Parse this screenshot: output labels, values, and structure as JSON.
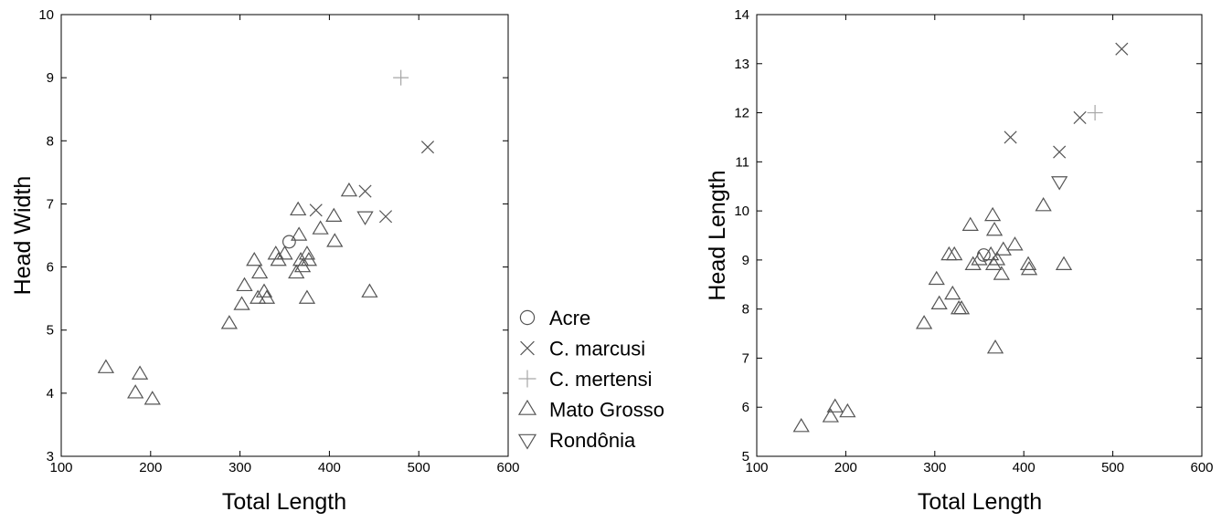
{
  "chart_data": [
    {
      "type": "scatter",
      "title": "",
      "xlabel": "Total Length",
      "ylabel": "Head Width",
      "xlim": [
        100,
        600
      ],
      "ylim": [
        3,
        10
      ],
      "xticks": [
        "100",
        "200",
        "300",
        "400",
        "500",
        "600"
      ],
      "yticks": [
        "3",
        "4",
        "5",
        "6",
        "7",
        "8",
        "9",
        "10"
      ],
      "grid": false,
      "series": [
        {
          "name": "Acre",
          "marker": "circle",
          "points": [
            [
              355,
              6.4
            ]
          ]
        },
        {
          "name": "C. marcusi",
          "marker": "x",
          "points": [
            [
              385,
              6.9
            ],
            [
              440,
              7.2
            ],
            [
              463,
              6.8
            ],
            [
              510,
              7.9
            ]
          ]
        },
        {
          "name": "C. mertensi",
          "marker": "plus",
          "points": [
            [
              480,
              9.0
            ]
          ]
        },
        {
          "name": "Mato Grosso",
          "marker": "triangle-up",
          "points": [
            [
              150,
              4.4
            ],
            [
              183,
              4.0
            ],
            [
              188,
              4.3
            ],
            [
              202,
              3.9
            ],
            [
              288,
              5.1
            ],
            [
              302,
              5.4
            ],
            [
              305,
              5.7
            ],
            [
              316,
              6.1
            ],
            [
              320,
              5.5
            ],
            [
              322,
              5.9
            ],
            [
              327,
              5.6
            ],
            [
              330,
              5.5
            ],
            [
              340,
              6.2
            ],
            [
              343,
              6.1
            ],
            [
              350,
              6.2
            ],
            [
              363,
              5.9
            ],
            [
              365,
              6.9
            ],
            [
              366,
              6.5
            ],
            [
              368,
              6.1
            ],
            [
              370,
              6.0
            ],
            [
              375,
              5.5
            ],
            [
              375,
              6.2
            ],
            [
              377,
              6.1
            ],
            [
              390,
              6.6
            ],
            [
              405,
              6.8
            ],
            [
              406,
              6.4
            ],
            [
              422,
              7.2
            ],
            [
              445,
              5.6
            ]
          ]
        },
        {
          "name": "Rondônia",
          "marker": "triangle-down",
          "points": [
            [
              440,
              6.8
            ]
          ]
        }
      ]
    },
    {
      "type": "scatter",
      "title": "",
      "xlabel": "Total Length",
      "ylabel": "Head Length",
      "xlim": [
        100,
        600
      ],
      "ylim": [
        5,
        14
      ],
      "xticks": [
        "100",
        "200",
        "300",
        "400",
        "500",
        "600"
      ],
      "yticks": [
        "5",
        "6",
        "7",
        "8",
        "9",
        "10",
        "11",
        "12",
        "13",
        "14"
      ],
      "grid": false,
      "series": [
        {
          "name": "Acre",
          "marker": "circle",
          "points": [
            [
              355,
              9.1
            ]
          ]
        },
        {
          "name": "C. marcusi",
          "marker": "x",
          "points": [
            [
              385,
              11.5
            ],
            [
              440,
              11.2
            ],
            [
              463,
              11.9
            ],
            [
              510,
              13.3
            ]
          ]
        },
        {
          "name": "C. mertensi",
          "marker": "plus",
          "points": [
            [
              480,
              12.0
            ]
          ]
        },
        {
          "name": "Mato Grosso",
          "marker": "triangle-up",
          "points": [
            [
              150,
              5.6
            ],
            [
              183,
              5.8
            ],
            [
              188,
              6.0
            ],
            [
              202,
              5.9
            ],
            [
              288,
              7.7
            ],
            [
              302,
              8.6
            ],
            [
              305,
              8.1
            ],
            [
              316,
              9.1
            ],
            [
              320,
              8.3
            ],
            [
              322,
              9.1
            ],
            [
              327,
              8.0
            ],
            [
              330,
              8.0
            ],
            [
              340,
              9.7
            ],
            [
              343,
              8.9
            ],
            [
              350,
              9.0
            ],
            [
              363,
              9.1
            ],
            [
              365,
              9.9
            ],
            [
              366,
              8.9
            ],
            [
              367,
              9.6
            ],
            [
              368,
              7.2
            ],
            [
              370,
              9.0
            ],
            [
              375,
              8.7
            ],
            [
              377,
              9.2
            ],
            [
              390,
              9.3
            ],
            [
              405,
              8.9
            ],
            [
              406,
              8.8
            ],
            [
              422,
              10.1
            ],
            [
              445,
              8.9
            ]
          ]
        },
        {
          "name": "Rondônia",
          "marker": "triangle-down",
          "points": [
            [
              440,
              10.6
            ]
          ]
        }
      ]
    }
  ],
  "legend": {
    "placement": "between-panels",
    "items": [
      {
        "label": "Acre",
        "marker": "circle"
      },
      {
        "label": "C. marcusi",
        "marker": "x"
      },
      {
        "label": "C. mertensi",
        "marker": "plus"
      },
      {
        "label": "Mato Grosso",
        "marker": "triangle-up"
      },
      {
        "label": "Rondônia",
        "marker": "triangle-down"
      }
    ]
  },
  "colors": {
    "marker_dark": "#555555",
    "marker_light": "#a6a6a6",
    "axis": "#000000"
  }
}
